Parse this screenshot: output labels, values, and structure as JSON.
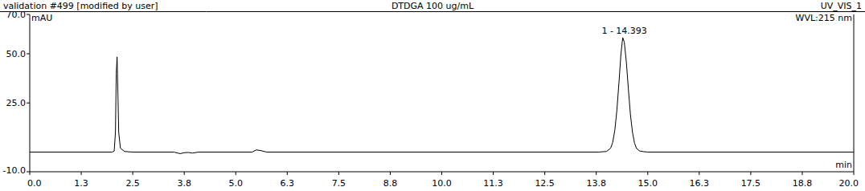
{
  "chart_data": {
    "type": "line",
    "title": "DTDGA 100 ug/mL",
    "subtitle": "validation #499 [modified by user]",
    "header_right": "UV_VIS_1",
    "wavelength_label": "WVL:215 nm",
    "xlabel": "min",
    "ylabel": "mAU",
    "x": [
      0.0,
      2.0,
      2.05,
      2.08,
      2.1,
      2.12,
      2.14,
      2.16,
      2.2,
      2.3,
      2.5,
      3.5,
      3.65,
      3.75,
      3.85,
      3.95,
      4.1,
      5.4,
      5.5,
      5.6,
      5.75,
      13.8,
      14.0,
      14.1,
      14.15,
      14.2,
      14.25,
      14.3,
      14.35,
      14.393,
      14.43,
      14.48,
      14.53,
      14.58,
      14.63,
      14.68,
      14.73,
      14.8,
      14.9,
      15.0,
      20.0
    ],
    "series": [
      {
        "color": "#000000",
        "values": [
          0,
          0,
          0.5,
          10,
          40,
          48.4,
          30,
          10,
          2,
          0.3,
          0,
          0,
          -0.8,
          -0.3,
          -0.2,
          -0.5,
          0,
          0,
          1.1,
          0.8,
          0,
          0,
          0.3,
          2,
          5,
          11,
          21,
          35,
          50,
          58.2,
          56,
          46,
          32,
          19,
          10,
          4.5,
          1.8,
          0.6,
          0.2,
          0,
          0
        ]
      }
    ],
    "annotations": [
      {
        "text": "1 - 14.393",
        "x": 14.393,
        "y": 58.2
      }
    ],
    "xlim": [
      0.0,
      20.0
    ],
    "xticks": [
      {
        "value": 0,
        "label": "0.0"
      },
      {
        "value": 1.25,
        "label": "1.3"
      },
      {
        "value": 2.5,
        "label": "2.5"
      },
      {
        "value": 3.75,
        "label": "3.8"
      },
      {
        "value": 5,
        "label": "5.0"
      },
      {
        "value": 6.25,
        "label": "6.3"
      },
      {
        "value": 7.5,
        "label": "7.5"
      },
      {
        "value": 8.75,
        "label": "8.8"
      },
      {
        "value": 10,
        "label": "10.0"
      },
      {
        "value": 11.25,
        "label": "11.3"
      },
      {
        "value": 12.5,
        "label": "12.5"
      },
      {
        "value": 13.75,
        "label": "13.8"
      },
      {
        "value": 15,
        "label": "15.0"
      },
      {
        "value": 16.25,
        "label": "16.3"
      },
      {
        "value": 17.5,
        "label": "17.5"
      },
      {
        "value": 18.75,
        "label": "18.8"
      },
      {
        "value": 20,
        "label": "20.0"
      }
    ],
    "ylim": [
      -10,
      70
    ],
    "yticks": [
      {
        "value": -10,
        "label": "-10.0"
      },
      {
        "value": 25,
        "label": "25.0"
      },
      {
        "value": 50,
        "label": "50.0"
      },
      {
        "value": 70,
        "label": "70.0"
      }
    ],
    "grid": false
  }
}
